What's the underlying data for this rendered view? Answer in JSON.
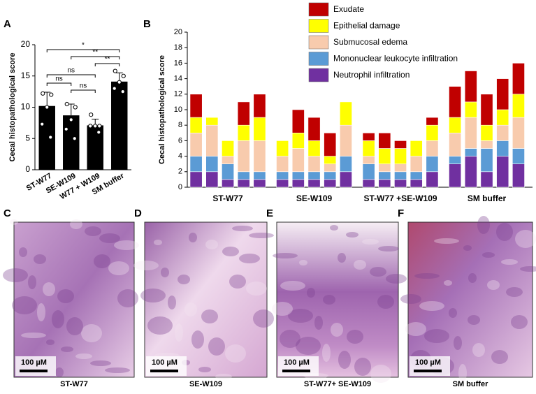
{
  "chart_data": [
    {
      "type": "bar",
      "panel": "A",
      "ylabel": "Cecal histopathological score",
      "categories": [
        "ST-W77",
        "SE-W109",
        "W77 + W109",
        "SM buffer"
      ],
      "values": [
        10.2,
        8.7,
        7.1,
        14.1
      ],
      "errors": [
        2.2,
        1.8,
        1.0,
        1.4
      ],
      "color": "#000000",
      "points": [
        [
          12.2,
          12,
          10,
          7.3,
          5.2
        ],
        [
          10.5,
          10,
          8,
          6.5,
          5
        ],
        [
          8.8,
          7,
          7,
          7,
          6
        ],
        [
          15.8,
          15,
          14,
          13,
          12.5
        ]
      ],
      "significance": [
        {
          "pair": [
            0,
            3
          ],
          "label": "*"
        },
        {
          "pair": [
            1,
            3
          ],
          "label": "**"
        },
        {
          "pair": [
            2,
            3
          ],
          "label": "**"
        },
        {
          "pair": [
            0,
            2
          ],
          "label": "ns"
        },
        {
          "pair": [
            0,
            1
          ],
          "label": "ns"
        },
        {
          "pair": [
            1,
            2
          ],
          "label": "ns"
        }
      ],
      "ylim": [
        0,
        20
      ],
      "yticks": [
        0,
        5,
        10,
        15,
        20
      ]
    },
    {
      "type": "stacked_bar",
      "panel": "B",
      "ylabel": "Cecal histopathological score",
      "categories": [
        null,
        null,
        null,
        null,
        null,
        null,
        null,
        null,
        null,
        null,
        null,
        null,
        null,
        null,
        null,
        null,
        null,
        null,
        null,
        null
      ],
      "groups": [
        "ST-W77",
        "SE-W109",
        "ST-W77 +SE-W109",
        "SM buffer"
      ],
      "series": [
        {
          "name": "Neutrophil infiltration",
          "color": "#7030a0",
          "values": [
            2,
            2,
            1,
            1,
            1,
            1,
            1,
            1,
            1,
            2,
            1,
            1,
            1,
            1,
            2,
            3,
            4,
            2,
            4,
            3
          ]
        },
        {
          "name": "Mononuclear leukocyte infiltration",
          "color": "#5b9bd5",
          "values": [
            2,
            2,
            2,
            1,
            1,
            1,
            1,
            1,
            1,
            2,
            2,
            1,
            1,
            1,
            2,
            1,
            1,
            3,
            2,
            2
          ]
        },
        {
          "name": "Submucosal edema",
          "color": "#f8cbad",
          "values": [
            3,
            4,
            1,
            4,
            4,
            2,
            3,
            2,
            1,
            4,
            1,
            1,
            1,
            2,
            2,
            3,
            4,
            1,
            2,
            4
          ]
        },
        {
          "name": "Epithelial damage",
          "color": "#ffff00",
          "values": [
            2,
            1,
            2,
            2,
            3,
            2,
            2,
            2,
            1,
            3,
            2,
            2,
            2,
            2,
            2,
            2,
            2,
            2,
            2,
            3
          ]
        },
        {
          "name": "Exudate",
          "color": "#c00000",
          "values": [
            3,
            0,
            0,
            3,
            3,
            0,
            3,
            3,
            3,
            0,
            1,
            2,
            1,
            0,
            1,
            4,
            4,
            4,
            4,
            4
          ]
        }
      ],
      "ylim": [
        0,
        20
      ],
      "yticks": [
        0,
        2,
        4,
        6,
        8,
        10,
        12,
        14,
        16,
        18,
        20
      ]
    }
  ],
  "panels": [
    {
      "letter": "C",
      "scale": "100 µM",
      "caption": "ST-W77"
    },
    {
      "letter": "D",
      "scale": "100 µM",
      "caption": "SE-W109"
    },
    {
      "letter": "E",
      "scale": "100 µM",
      "caption": "ST-W77+ SE-W109"
    },
    {
      "letter": "F",
      "scale": "100 µM",
      "caption": "SM buffer"
    }
  ]
}
